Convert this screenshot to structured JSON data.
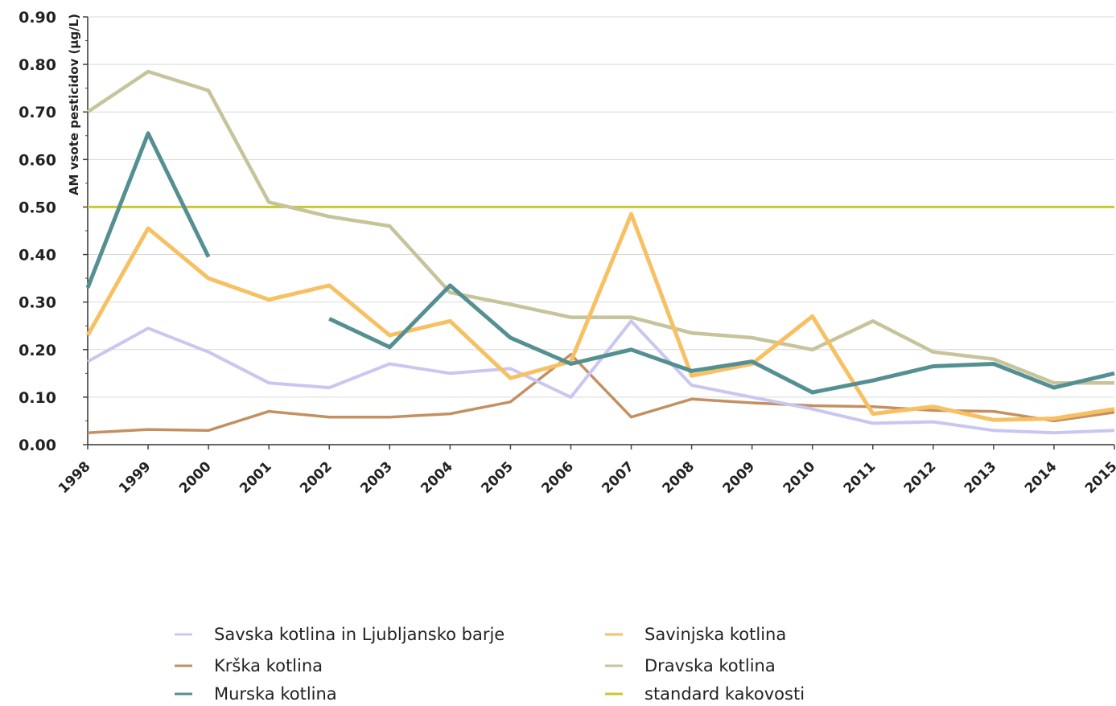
{
  "chart_data": {
    "type": "line",
    "title": "",
    "xlabel": "",
    "ylabel": "AM vsote pesticidov (µg/L)",
    "x": [
      "1998",
      "1999",
      "2000",
      "2001",
      "2002",
      "2003",
      "2004",
      "2005",
      "2006",
      "2007",
      "2008",
      "2009",
      "2010",
      "2011",
      "2012",
      "2013",
      "2014",
      "2015"
    ],
    "ylim": [
      0,
      0.9
    ],
    "yticks": [
      "0.00",
      "0.10",
      "0.20",
      "0.30",
      "0.40",
      "0.50",
      "0.60",
      "0.70",
      "0.80",
      "0.90"
    ],
    "grid": "horizontal",
    "legend_position": "bottom",
    "series": [
      {
        "name": "Savska kotlina in Ljubljansko barje",
        "color": "#c9c6f2",
        "values": [
          0.175,
          0.245,
          0.195,
          0.13,
          0.12,
          0.17,
          0.15,
          0.16,
          0.1,
          0.26,
          0.125,
          0.1,
          0.075,
          0.045,
          0.048,
          0.03,
          0.025,
          0.03
        ]
      },
      {
        "name": "Savinjska kotlina",
        "color": "#f7c062",
        "values": [
          0.23,
          0.455,
          0.35,
          0.305,
          0.335,
          0.23,
          0.26,
          0.14,
          0.175,
          0.485,
          0.145,
          0.17,
          0.27,
          0.065,
          0.08,
          0.052,
          0.055,
          0.075
        ]
      },
      {
        "name": "Krška kotlina",
        "color": "#c49062",
        "values": [
          0.025,
          0.032,
          0.03,
          0.07,
          0.058,
          0.058,
          0.065,
          0.09,
          0.19,
          0.058,
          0.096,
          0.088,
          0.082,
          0.08,
          0.072,
          0.07,
          0.05,
          0.068
        ]
      },
      {
        "name": "Dravska kotlina",
        "color": "#c7c39a",
        "values": [
          0.7,
          0.785,
          0.745,
          0.51,
          0.48,
          0.46,
          0.32,
          0.295,
          0.268,
          0.268,
          0.235,
          0.225,
          0.2,
          0.26,
          0.195,
          0.18,
          0.13,
          0.13
        ]
      },
      {
        "name": "Murska kotlina",
        "color": "#548f91",
        "values": [
          0.33,
          0.655,
          0.395,
          null,
          0.265,
          0.205,
          0.335,
          0.225,
          0.17,
          0.2,
          0.155,
          0.175,
          0.11,
          0.135,
          0.165,
          0.17,
          0.12,
          0.15
        ]
      },
      {
        "name": "standard kakovosti",
        "color": "#c8c832",
        "values": [
          0.5,
          0.5,
          0.5,
          0.5,
          0.5,
          0.5,
          0.5,
          0.5,
          0.5,
          0.5,
          0.5,
          0.5,
          0.5,
          0.5,
          0.5,
          0.5,
          0.5,
          0.5
        ]
      }
    ]
  }
}
